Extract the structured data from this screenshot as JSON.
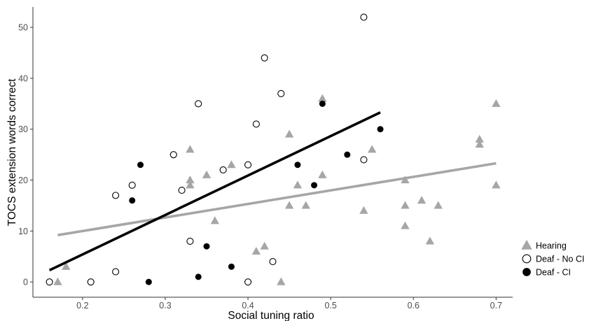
{
  "chart_data": {
    "type": "scatter",
    "xlabel": "Social tuning ratio",
    "ylabel": "TOCS extension words correct",
    "xlim": [
      0.14,
      0.72
    ],
    "ylim": [
      -3,
      54
    ],
    "x_ticks": [
      "0.2",
      "0.3",
      "0.4",
      "0.5",
      "0.6",
      "0.7"
    ],
    "y_ticks": [
      "0",
      "10",
      "20",
      "30",
      "40",
      "50"
    ],
    "grid": false,
    "legend_position": "bottom-right",
    "series": [
      {
        "name": "Hearing",
        "marker": "triangle",
        "color": "#a6a6a6",
        "points": [
          [
            0.17,
            0
          ],
          [
            0.18,
            3
          ],
          [
            0.33,
            26
          ],
          [
            0.33,
            20
          ],
          [
            0.33,
            19
          ],
          [
            0.35,
            21
          ],
          [
            0.36,
            12
          ],
          [
            0.38,
            23
          ],
          [
            0.41,
            6
          ],
          [
            0.42,
            7
          ],
          [
            0.44,
            0
          ],
          [
            0.45,
            29
          ],
          [
            0.45,
            15
          ],
          [
            0.46,
            19
          ],
          [
            0.47,
            15
          ],
          [
            0.49,
            36
          ],
          [
            0.49,
            21
          ],
          [
            0.54,
            14
          ],
          [
            0.55,
            26
          ],
          [
            0.59,
            20
          ],
          [
            0.59,
            15
          ],
          [
            0.59,
            11
          ],
          [
            0.61,
            16
          ],
          [
            0.62,
            8
          ],
          [
            0.63,
            15
          ],
          [
            0.68,
            28
          ],
          [
            0.68,
            27
          ],
          [
            0.7,
            35
          ],
          [
            0.7,
            19
          ]
        ],
        "fit": {
          "x": [
            0.17,
            0.7
          ],
          "y": [
            9.2,
            23.3
          ]
        }
      },
      {
        "name": "Deaf - No CI",
        "marker": "open-circle",
        "color": "#000000",
        "points": [
          [
            0.16,
            0
          ],
          [
            0.21,
            0
          ],
          [
            0.24,
            17
          ],
          [
            0.24,
            2
          ],
          [
            0.26,
            19
          ],
          [
            0.31,
            25
          ],
          [
            0.32,
            18
          ],
          [
            0.33,
            8
          ],
          [
            0.34,
            35
          ],
          [
            0.37,
            22
          ],
          [
            0.4,
            23
          ],
          [
            0.4,
            0
          ],
          [
            0.41,
            31
          ],
          [
            0.42,
            44
          ],
          [
            0.43,
            4
          ],
          [
            0.44,
            37
          ],
          [
            0.54,
            52
          ],
          [
            0.54,
            24
          ]
        ],
        "fit": null
      },
      {
        "name": "Deaf - CI",
        "marker": "filled-circle",
        "color": "#000000",
        "points": [
          [
            0.26,
            16
          ],
          [
            0.27,
            23
          ],
          [
            0.28,
            0
          ],
          [
            0.34,
            1
          ],
          [
            0.35,
            7
          ],
          [
            0.38,
            3
          ],
          [
            0.46,
            23
          ],
          [
            0.48,
            19
          ],
          [
            0.49,
            35
          ],
          [
            0.52,
            25
          ],
          [
            0.56,
            30
          ]
        ],
        "fit": {
          "x": [
            0.16,
            0.56
          ],
          "y": [
            2.3,
            33.3
          ]
        }
      }
    ]
  }
}
